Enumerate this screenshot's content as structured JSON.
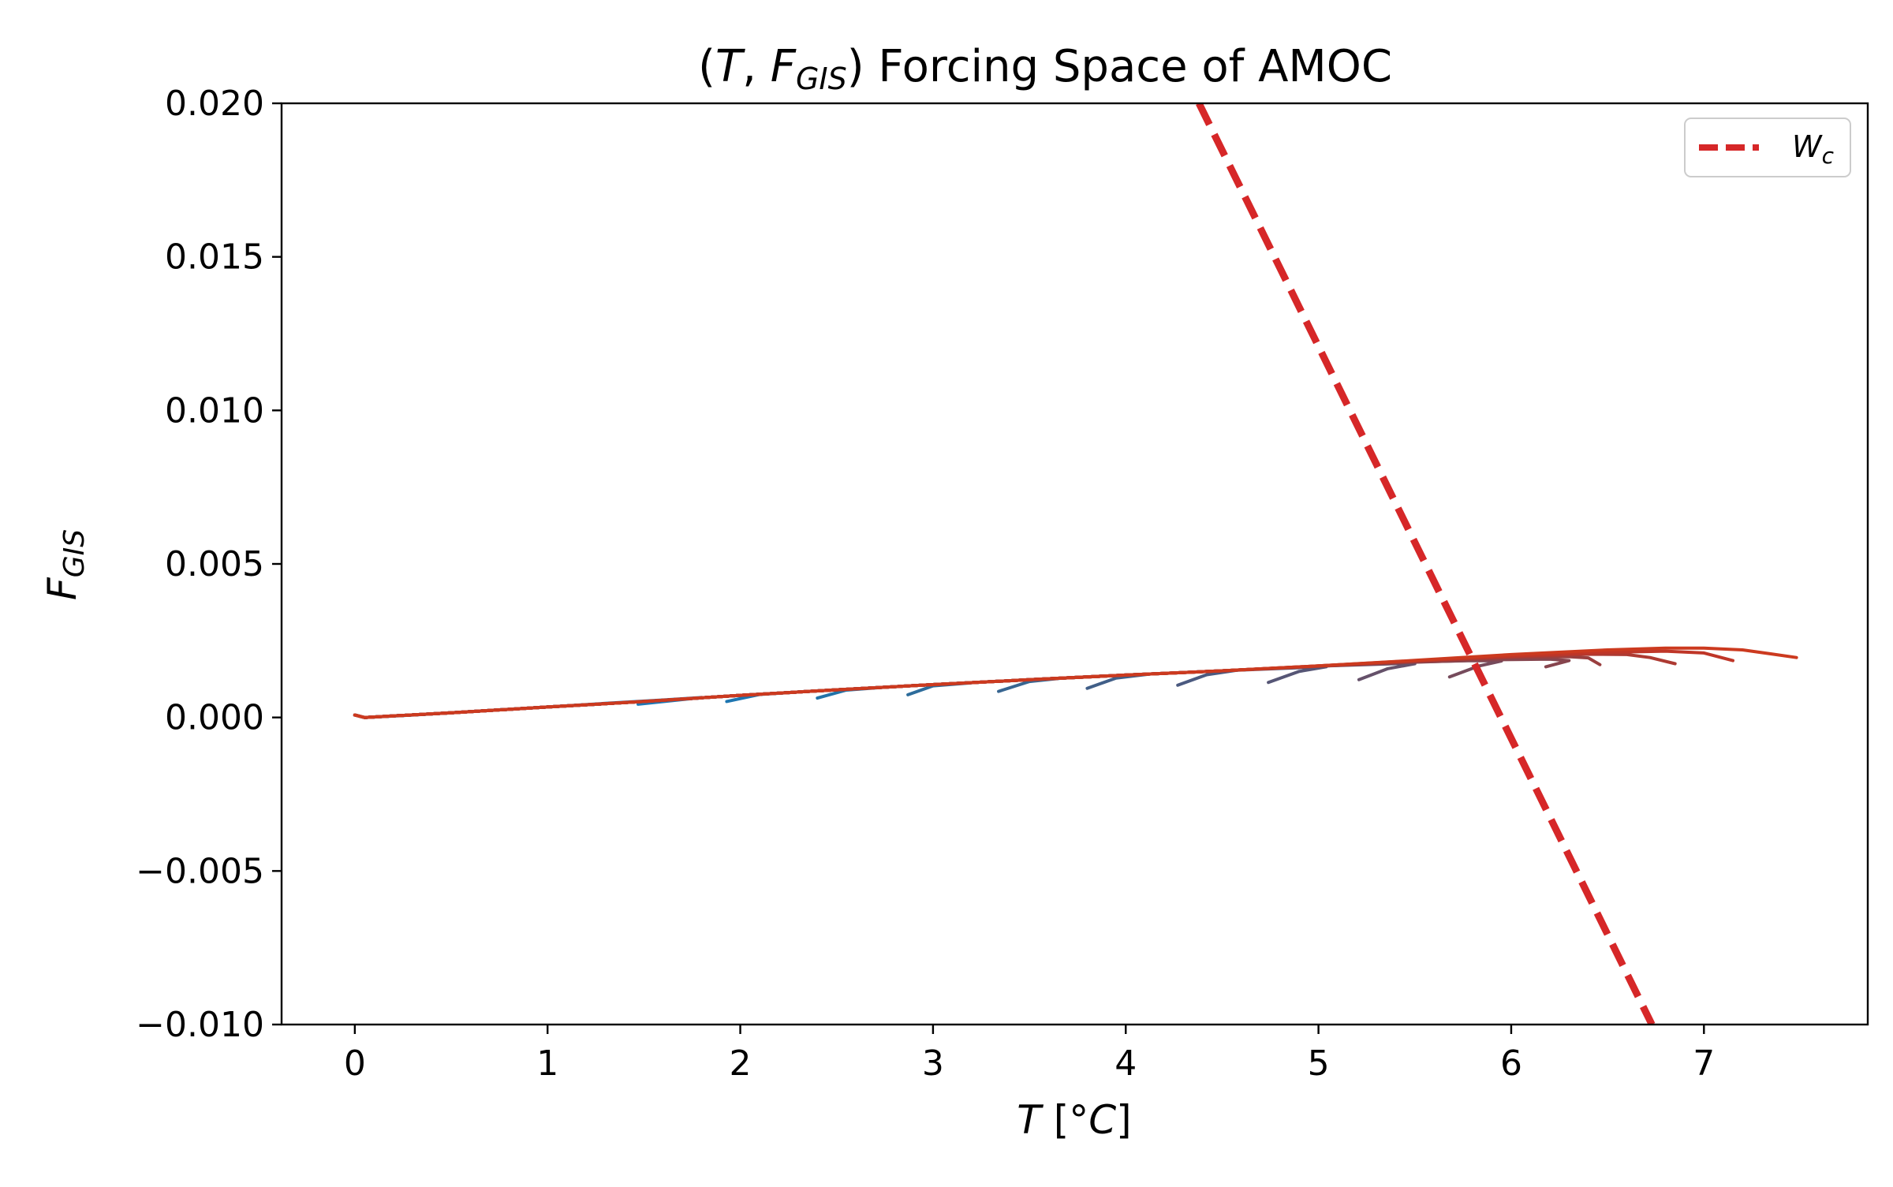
{
  "chart_data": {
    "type": "line",
    "title": {
      "open": "(",
      "var": "T",
      "comma": ", ",
      "fvar": "F",
      "sub": "GIS",
      "close": ")",
      "rest": " Forcing Space of AMOC"
    },
    "xlabel": {
      "var": "T",
      "unit": " [°",
      "unitvar": "C",
      "close": "]"
    },
    "ylabel": {
      "var": "F",
      "sub": "GIS"
    },
    "xlim": [
      -0.38,
      7.85
    ],
    "ylim": [
      -0.01,
      0.02
    ],
    "x_ticks": [
      0,
      1,
      2,
      3,
      4,
      5,
      6,
      7
    ],
    "x_tick_labels": [
      "0",
      "1",
      "2",
      "3",
      "4",
      "5",
      "6",
      "7"
    ],
    "y_ticks": [
      0.02,
      0.015,
      0.01,
      0.005,
      0.0,
      -0.005,
      -0.01
    ],
    "y_tick_labels": [
      "0.020",
      "0.015",
      "0.010",
      "0.005",
      "0.000",
      "−0.005",
      "−0.010"
    ],
    "grid": false,
    "legend": {
      "placement": "top-right",
      "label_var": "W",
      "label_sub": "c"
    },
    "critical_line": {
      "name": "Wc",
      "color": "#d62728",
      "style": "dashed",
      "points": [
        [
          4.38,
          0.02
        ],
        [
          6.73,
          -0.01
        ]
      ]
    },
    "series": [
      {
        "color": "#1f77b4",
        "points": [
          [
            0.0,
            8e-05
          ],
          [
            0.05,
            0.0
          ],
          [
            0.3,
            8e-05
          ],
          [
            0.7,
            0.00023
          ],
          [
            1.0,
            0.00034
          ],
          [
            1.3,
            0.00046
          ],
          [
            1.6,
            0.00057
          ],
          [
            1.8,
            0.00065
          ],
          [
            1.47,
            0.00043
          ]
        ]
      },
      {
        "color": "#1e76b1",
        "points": [
          [
            0.0,
            8e-05
          ],
          [
            0.05,
            0.0
          ],
          [
            0.5,
            0.00015
          ],
          [
            1.0,
            0.00034
          ],
          [
            1.5,
            0.00052
          ],
          [
            2.0,
            0.00072
          ],
          [
            2.28,
            0.00082
          ],
          [
            2.1,
            0.00075
          ],
          [
            1.93,
            0.00052
          ]
        ]
      },
      {
        "color": "#2273a8",
        "points": [
          [
            0.0,
            8e-05
          ],
          [
            0.05,
            0.0
          ],
          [
            0.5,
            0.00015
          ],
          [
            1.0,
            0.00034
          ],
          [
            1.5,
            0.00052
          ],
          [
            2.0,
            0.00072
          ],
          [
            2.5,
            0.0009
          ],
          [
            2.74,
            0.00098
          ],
          [
            2.55,
            0.00089
          ],
          [
            2.4,
            0.00063
          ]
        ]
      },
      {
        "color": "#2d6c9b",
        "points": [
          [
            0.0,
            8e-05
          ],
          [
            0.05,
            0.0
          ],
          [
            0.5,
            0.00015
          ],
          [
            1.0,
            0.00034
          ],
          [
            1.5,
            0.00052
          ],
          [
            2.0,
            0.00072
          ],
          [
            2.5,
            0.0009
          ],
          [
            3.0,
            0.00107
          ],
          [
            3.2,
            0.00113
          ],
          [
            3.0,
            0.00103
          ],
          [
            2.87,
            0.00074
          ]
        ]
      },
      {
        "color": "#386691",
        "points": [
          [
            0.0,
            8e-05
          ],
          [
            0.05,
            0.0
          ],
          [
            0.5,
            0.00015
          ],
          [
            1.0,
            0.00034
          ],
          [
            1.5,
            0.00052
          ],
          [
            2.0,
            0.00072
          ],
          [
            2.5,
            0.0009
          ],
          [
            3.0,
            0.00107
          ],
          [
            3.5,
            0.00123
          ],
          [
            3.67,
            0.00128
          ],
          [
            3.5,
            0.00117
          ],
          [
            3.34,
            0.00085
          ]
        ]
      },
      {
        "color": "#415f88",
        "points": [
          [
            0.0,
            8e-05
          ],
          [
            0.05,
            0.0
          ],
          [
            0.5,
            0.00015
          ],
          [
            1.0,
            0.00034
          ],
          [
            1.5,
            0.00052
          ],
          [
            2.0,
            0.00072
          ],
          [
            2.5,
            0.0009
          ],
          [
            3.0,
            0.00107
          ],
          [
            3.5,
            0.00123
          ],
          [
            4.0,
            0.00138
          ],
          [
            4.12,
            0.00141
          ],
          [
            3.95,
            0.00128
          ],
          [
            3.8,
            0.00095
          ]
        ]
      },
      {
        "color": "#4b5a80",
        "points": [
          [
            0.0,
            8e-05
          ],
          [
            0.05,
            0.0
          ],
          [
            0.5,
            0.00015
          ],
          [
            1.0,
            0.00034
          ],
          [
            1.5,
            0.00052
          ],
          [
            2.0,
            0.00072
          ],
          [
            2.5,
            0.0009
          ],
          [
            3.0,
            0.00107
          ],
          [
            3.5,
            0.00123
          ],
          [
            4.0,
            0.00138
          ],
          [
            4.5,
            0.00152
          ],
          [
            4.58,
            0.00154
          ],
          [
            4.42,
            0.00139
          ],
          [
            4.27,
            0.00105
          ]
        ]
      },
      {
        "color": "#565676",
        "points": [
          [
            0.0,
            8e-05
          ],
          [
            0.05,
            0.0
          ],
          [
            0.5,
            0.00015
          ],
          [
            1.0,
            0.00034
          ],
          [
            1.5,
            0.00052
          ],
          [
            2.0,
            0.00072
          ],
          [
            2.5,
            0.0009
          ],
          [
            3.0,
            0.00107
          ],
          [
            3.5,
            0.00123
          ],
          [
            4.0,
            0.00138
          ],
          [
            4.5,
            0.00152
          ],
          [
            4.9,
            0.00162
          ],
          [
            5.04,
            0.00165
          ],
          [
            4.9,
            0.0015
          ],
          [
            4.74,
            0.00114
          ]
        ]
      },
      {
        "color": "#65516a",
        "points": [
          [
            0.0,
            8e-05
          ],
          [
            0.05,
            0.0
          ],
          [
            0.5,
            0.00015
          ],
          [
            1.0,
            0.00034
          ],
          [
            1.5,
            0.00052
          ],
          [
            2.0,
            0.00072
          ],
          [
            2.5,
            0.0009
          ],
          [
            3.0,
            0.00107
          ],
          [
            3.5,
            0.00123
          ],
          [
            4.0,
            0.00138
          ],
          [
            4.5,
            0.00152
          ],
          [
            5.0,
            0.00167
          ],
          [
            5.4,
            0.00175
          ],
          [
            5.5,
            0.00175
          ],
          [
            5.36,
            0.00159
          ],
          [
            5.21,
            0.00123
          ]
        ]
      },
      {
        "color": "#764b5c",
        "points": [
          [
            0.0,
            8e-05
          ],
          [
            0.05,
            0.0
          ],
          [
            0.5,
            0.00015
          ],
          [
            1.0,
            0.00034
          ],
          [
            1.5,
            0.00052
          ],
          [
            2.0,
            0.00072
          ],
          [
            2.5,
            0.0009
          ],
          [
            3.0,
            0.00107
          ],
          [
            3.5,
            0.00123
          ],
          [
            4.0,
            0.00138
          ],
          [
            4.5,
            0.00152
          ],
          [
            5.0,
            0.00167
          ],
          [
            5.5,
            0.00181
          ],
          [
            5.8,
            0.00185
          ],
          [
            5.95,
            0.00184
          ],
          [
            5.83,
            0.00167
          ],
          [
            5.68,
            0.00132
          ]
        ]
      },
      {
        "color": "#87454e",
        "points": [
          [
            0.0,
            8e-05
          ],
          [
            0.05,
            0.0
          ],
          [
            0.5,
            0.00015
          ],
          [
            1.0,
            0.00034
          ],
          [
            1.5,
            0.00052
          ],
          [
            2.0,
            0.00072
          ],
          [
            2.5,
            0.0009
          ],
          [
            3.0,
            0.00107
          ],
          [
            3.5,
            0.00123
          ],
          [
            4.0,
            0.00138
          ],
          [
            4.5,
            0.00152
          ],
          [
            5.0,
            0.00167
          ],
          [
            5.5,
            0.0018
          ],
          [
            5.9,
            0.00188
          ],
          [
            6.2,
            0.0019
          ],
          [
            6.3,
            0.00185
          ],
          [
            6.18,
            0.00165
          ]
        ]
      },
      {
        "color": "#9a3f3f",
        "points": [
          [
            0.0,
            8e-05
          ],
          [
            0.05,
            0.0
          ],
          [
            0.5,
            0.00015
          ],
          [
            1.0,
            0.00034
          ],
          [
            1.5,
            0.00052
          ],
          [
            2.0,
            0.00072
          ],
          [
            2.5,
            0.0009
          ],
          [
            3.0,
            0.00107
          ],
          [
            3.5,
            0.00123
          ],
          [
            4.0,
            0.00138
          ],
          [
            4.5,
            0.00152
          ],
          [
            5.0,
            0.00167
          ],
          [
            5.5,
            0.00182
          ],
          [
            6.0,
            0.00195
          ],
          [
            6.3,
            0.00198
          ],
          [
            6.4,
            0.00194
          ],
          [
            6.46,
            0.00172
          ]
        ]
      },
      {
        "color": "#ad3a32",
        "points": [
          [
            0.0,
            8e-05
          ],
          [
            0.05,
            0.0
          ],
          [
            0.5,
            0.00015
          ],
          [
            1.0,
            0.00034
          ],
          [
            1.5,
            0.00052
          ],
          [
            2.0,
            0.00072
          ],
          [
            2.5,
            0.0009
          ],
          [
            3.0,
            0.00107
          ],
          [
            3.5,
            0.00123
          ],
          [
            4.0,
            0.00138
          ],
          [
            4.5,
            0.00152
          ],
          [
            5.0,
            0.00168
          ],
          [
            5.5,
            0.00184
          ],
          [
            6.0,
            0.00198
          ],
          [
            6.4,
            0.00206
          ],
          [
            6.6,
            0.00205
          ],
          [
            6.72,
            0.00195
          ],
          [
            6.85,
            0.00175
          ]
        ]
      },
      {
        "color": "#bf3628",
        "points": [
          [
            0.0,
            8e-05
          ],
          [
            0.05,
            0.0
          ],
          [
            0.5,
            0.00015
          ],
          [
            1.0,
            0.00034
          ],
          [
            1.5,
            0.00052
          ],
          [
            2.0,
            0.00072
          ],
          [
            2.5,
            0.0009
          ],
          [
            3.0,
            0.00107
          ],
          [
            3.5,
            0.00123
          ],
          [
            4.0,
            0.00138
          ],
          [
            4.5,
            0.00152
          ],
          [
            5.0,
            0.00168
          ],
          [
            5.5,
            0.00185
          ],
          [
            6.0,
            0.002
          ],
          [
            6.5,
            0.00212
          ],
          [
            6.8,
            0.00216
          ],
          [
            7.0,
            0.0021
          ],
          [
            7.15,
            0.00185
          ]
        ]
      },
      {
        "color": "#cc3a1f",
        "points": [
          [
            0.0,
            8e-05
          ],
          [
            0.05,
            0.0
          ],
          [
            0.5,
            0.00015
          ],
          [
            1.0,
            0.00034
          ],
          [
            1.5,
            0.00052
          ],
          [
            2.0,
            0.00072
          ],
          [
            2.5,
            0.0009
          ],
          [
            3.0,
            0.00107
          ],
          [
            3.5,
            0.00123
          ],
          [
            4.0,
            0.00138
          ],
          [
            4.5,
            0.00152
          ],
          [
            5.0,
            0.00168
          ],
          [
            5.5,
            0.00186
          ],
          [
            6.0,
            0.00205
          ],
          [
            6.5,
            0.0022
          ],
          [
            6.8,
            0.00226
          ],
          [
            7.0,
            0.00226
          ],
          [
            7.2,
            0.0022
          ],
          [
            7.35,
            0.00207
          ],
          [
            7.48,
            0.00195
          ]
        ]
      }
    ]
  }
}
